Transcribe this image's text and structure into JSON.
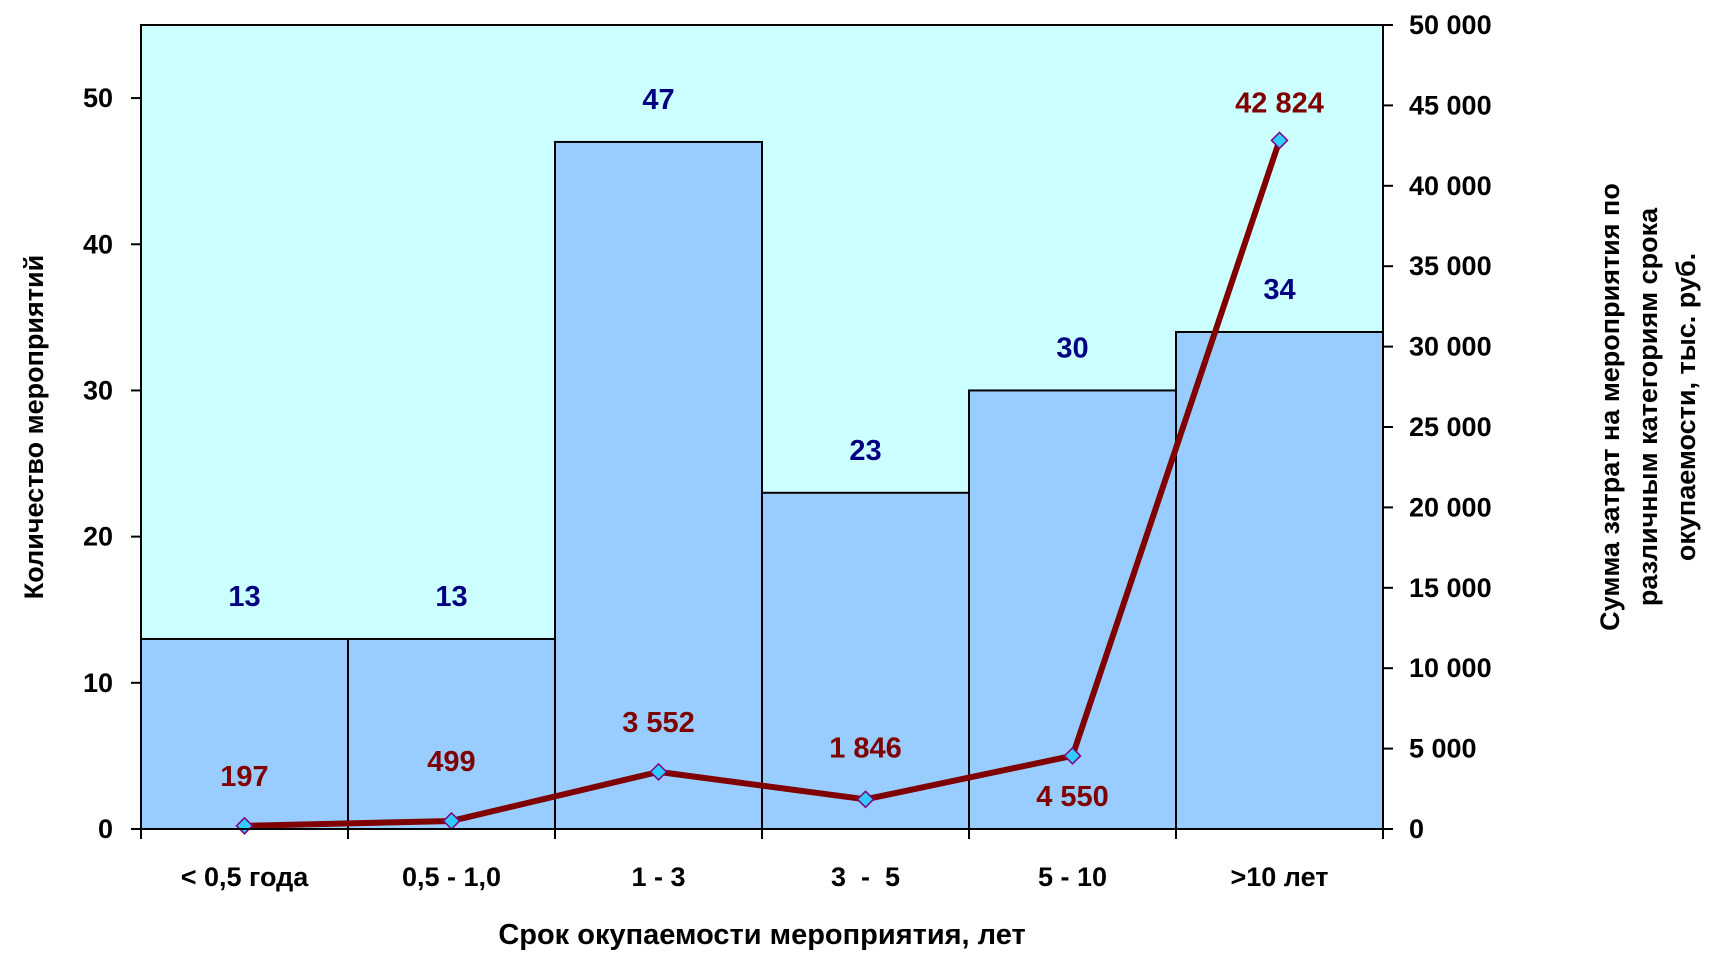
{
  "chart_data": {
    "type": "bar",
    "categories": [
      "< 0,5 года",
      "0,5 - 1,0",
      "1 - 3",
      "3  -  5",
      "5 - 10",
      ">10 лет"
    ],
    "xlabel": "Срок окупаемости мероприятия, лет",
    "ylabel": "Количество мероприятий",
    "ylabel_right": "Сумма затрат на мероприятия по различным категориям срока окупаемости, тыс. руб.",
    "ylabel_right_lines": [
      "Сумма затрат на мероприятия по",
      "различным категориям срока",
      "окупаемости, тыс. руб."
    ],
    "ylim": [
      0,
      55
    ],
    "ylim_right": [
      0,
      50000
    ],
    "yticks": [
      "0",
      "10",
      "20",
      "30",
      "40",
      "50"
    ],
    "yticks_right": [
      "0",
      "5 000",
      "10 000",
      "15 000",
      "20 000",
      "25 000",
      "30 000",
      "35 000",
      "40 000",
      "45 000",
      "50 000"
    ],
    "grid": false,
    "legend": null,
    "series": [
      {
        "type": "bar",
        "axis": "left",
        "values": [
          13,
          13,
          47,
          23,
          30,
          34
        ],
        "labels": [
          "13",
          "13",
          "47",
          "23",
          "30",
          "34"
        ],
        "color": "#99ccff"
      },
      {
        "type": "line",
        "axis": "right",
        "values": [
          197,
          499,
          3552,
          1846,
          4550,
          42824
        ],
        "labels": [
          "197",
          "499",
          "3 552",
          "1 846",
          "4 550",
          "42 824"
        ],
        "color": "#800000",
        "marker_color": "#33ccff"
      }
    ],
    "colors": {
      "plot_background": "#ccffff",
      "bar_label": "#000080",
      "line_label": "#800000",
      "axis": "#000000"
    }
  }
}
